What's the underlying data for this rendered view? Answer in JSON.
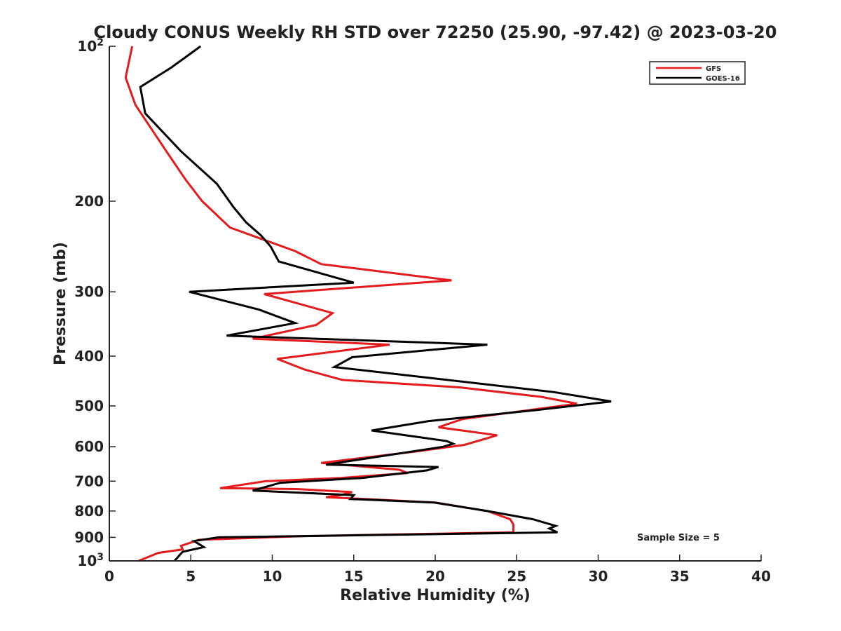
{
  "chart_data": {
    "type": "line",
    "title": "Cloudy CONUS Weekly RH STD over 72250 (25.90, -97.42) @ 2023-03-20",
    "xlabel": "Relative Humidity (%)",
    "ylabel": "Pressure (mb)",
    "xlim": [
      0,
      40
    ],
    "ylim": [
      100,
      1000
    ],
    "y_scale": "log",
    "y_reversed": true,
    "grid": false,
    "legend_position": "top-right",
    "annotation": "Sample Size = 5",
    "x_ticks": [
      "0",
      "5",
      "10",
      "15",
      "20",
      "25",
      "30",
      "35",
      "40"
    ],
    "y_ticks": [
      {
        "value": 100,
        "base": "10",
        "exp": "2"
      },
      {
        "value": 200,
        "label": "200"
      },
      {
        "value": 300,
        "label": "300"
      },
      {
        "value": 400,
        "label": "400"
      },
      {
        "value": 500,
        "label": "500"
      },
      {
        "value": 600,
        "label": "600"
      },
      {
        "value": 700,
        "label": "700"
      },
      {
        "value": 800,
        "label": "800"
      },
      {
        "value": 900,
        "label": "900"
      },
      {
        "value": 1000,
        "base": "10",
        "exp": "3"
      }
    ],
    "series": [
      {
        "name": "GFS",
        "color": "#e41a1c",
        "points": [
          [
            1.4,
            100
          ],
          [
            1.0,
            115
          ],
          [
            1.6,
            130
          ],
          [
            3.5,
            160
          ],
          [
            4.7,
            182
          ],
          [
            5.7,
            200
          ],
          [
            7.4,
            225
          ],
          [
            11.4,
            250
          ],
          [
            13.0,
            265
          ],
          [
            21.0,
            285
          ],
          [
            9.5,
            303
          ],
          [
            13.7,
            330
          ],
          [
            12.7,
            348
          ],
          [
            8.8,
            370
          ],
          [
            17.2,
            380
          ],
          [
            10.3,
            405
          ],
          [
            12.0,
            425
          ],
          [
            14.3,
            445
          ],
          [
            21.5,
            460
          ],
          [
            26.5,
            480
          ],
          [
            28.7,
            495
          ],
          [
            21.7,
            530
          ],
          [
            20.2,
            550
          ],
          [
            23.8,
            570
          ],
          [
            21.8,
            595
          ],
          [
            18.8,
            613
          ],
          [
            13.0,
            645
          ],
          [
            17.8,
            665
          ],
          [
            18.3,
            675
          ],
          [
            14.2,
            690
          ],
          [
            9.6,
            700
          ],
          [
            6.8,
            722
          ],
          [
            11.5,
            725
          ],
          [
            14.9,
            735
          ],
          [
            14.2,
            745
          ],
          [
            13.3,
            752
          ],
          [
            20.0,
            770
          ],
          [
            23.2,
            800
          ],
          [
            24.6,
            830
          ],
          [
            24.8,
            850
          ],
          [
            24.8,
            880
          ],
          [
            12.0,
            895
          ],
          [
            5.5,
            910
          ],
          [
            4.4,
            935
          ],
          [
            4.5,
            950
          ],
          [
            3.0,
            965
          ],
          [
            1.8,
            1000
          ]
        ]
      },
      {
        "name": "GOES-16",
        "color": "#000000",
        "points": [
          [
            5.6,
            100
          ],
          [
            3.8,
            110
          ],
          [
            1.9,
            120
          ],
          [
            2.2,
            135
          ],
          [
            4.4,
            160
          ],
          [
            6.6,
            185
          ],
          [
            7.6,
            205
          ],
          [
            8.4,
            220
          ],
          [
            9.3,
            233
          ],
          [
            9.9,
            245
          ],
          [
            10.4,
            262
          ],
          [
            15.0,
            288
          ],
          [
            4.9,
            300
          ],
          [
            9.2,
            325
          ],
          [
            11.4,
            345
          ],
          [
            7.2,
            365
          ],
          [
            23.2,
            380
          ],
          [
            14.9,
            402
          ],
          [
            13.8,
            420
          ],
          [
            27.3,
            470
          ],
          [
            30.8,
            490
          ],
          [
            26.0,
            510
          ],
          [
            19.6,
            535
          ],
          [
            16.1,
            558
          ],
          [
            20.7,
            585
          ],
          [
            21.1,
            592
          ],
          [
            20.5,
            600
          ],
          [
            13.3,
            650
          ],
          [
            20.2,
            657
          ],
          [
            19.5,
            667
          ],
          [
            15.5,
            690
          ],
          [
            10.5,
            705
          ],
          [
            8.8,
            730
          ],
          [
            15.0,
            745
          ],
          [
            14.8,
            758
          ],
          [
            19.9,
            770
          ],
          [
            23.2,
            800
          ],
          [
            26.0,
            830
          ],
          [
            27.4,
            855
          ],
          [
            27.0,
            865
          ],
          [
            27.5,
            880
          ],
          [
            6.7,
            900
          ],
          [
            5.2,
            915
          ],
          [
            5.8,
            940
          ],
          [
            4.5,
            960
          ],
          [
            4.0,
            1000
          ]
        ]
      }
    ]
  }
}
